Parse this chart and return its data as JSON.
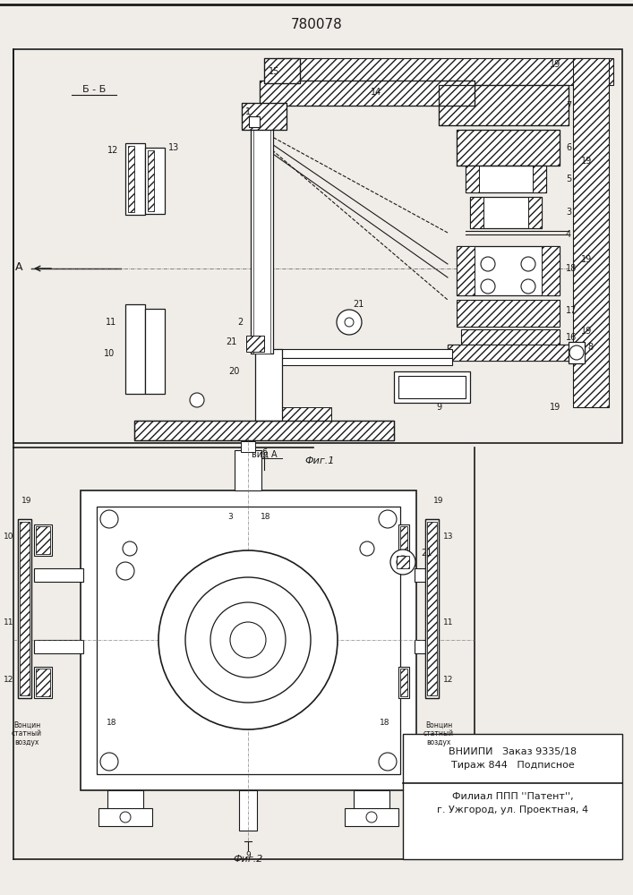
{
  "title": "780078",
  "fig1_label": "Фиг.1",
  "fig2_label": "Фиг.2",
  "vid_label": "вид А",
  "section_label": "Б - Б",
  "vniiipi_line1": "ВНИИПИ   Заказ 9335/18",
  "vniiipi_line2": "Тираж 844   Подписное",
  "filial_line1": "Филиал ППП ''Патент'',",
  "filial_line2": "г. Ужгород, ул. Проектная, 4",
  "bg_color": "#f0ede8",
  "line_color": "#1a1a1a"
}
